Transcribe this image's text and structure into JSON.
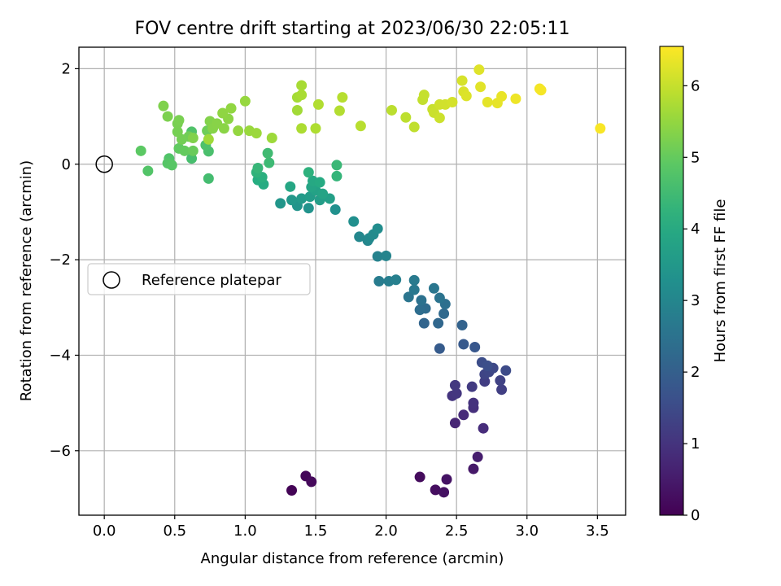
{
  "chart_data": {
    "type": "scatter",
    "title": "FOV centre drift starting at 2023/06/30 22:05:11",
    "xlabel": "Angular distance from reference (arcmin)",
    "ylabel": "Rotation from reference (arcmin)",
    "xlim": [
      -0.18,
      3.7
    ],
    "ylim": [
      -7.35,
      2.45
    ],
    "xticks": [
      0.0,
      0.5,
      1.0,
      1.5,
      2.0,
      2.5,
      3.0,
      3.5
    ],
    "xtick_labels": [
      "0.0",
      "0.5",
      "1.0",
      "1.5",
      "2.0",
      "2.5",
      "3.0",
      "3.5"
    ],
    "yticks": [
      -6,
      -4,
      -2,
      0,
      2
    ],
    "ytick_labels": [
      "−6",
      "−4",
      "−2",
      "0",
      "2"
    ],
    "grid": true,
    "colormap": "viridis",
    "colorbar": {
      "label": "Hours from first FF file",
      "range": [
        0,
        6.55
      ],
      "ticks": [
        0,
        1,
        2,
        3,
        4,
        5,
        6
      ],
      "tick_labels": [
        "0",
        "1",
        "2",
        "3",
        "4",
        "5",
        "6"
      ]
    },
    "legend": {
      "placement": "center-left",
      "entries": [
        {
          "label": "Reference platepar",
          "marker": "open-circle"
        }
      ]
    },
    "reference_point": {
      "x": 0.0,
      "y": 0.0
    },
    "series": [
      {
        "points": [
          {
            "x": 1.33,
            "y": -6.83,
            "c": 0.05
          },
          {
            "x": 1.43,
            "y": -6.53,
            "c": 0.1
          },
          {
            "x": 1.47,
            "y": -6.65,
            "c": 0.15
          },
          {
            "x": 2.24,
            "y": -6.55,
            "c": 0.2
          },
          {
            "x": 2.35,
            "y": -6.82,
            "c": 0.25
          },
          {
            "x": 2.41,
            "y": -6.87,
            "c": 0.3
          },
          {
            "x": 2.43,
            "y": -6.6,
            "c": 0.35
          },
          {
            "x": 2.62,
            "y": -6.38,
            "c": 0.45
          },
          {
            "x": 2.65,
            "y": -6.13,
            "c": 0.55
          },
          {
            "x": 2.49,
            "y": -5.42,
            "c": 0.7
          },
          {
            "x": 2.55,
            "y": -5.25,
            "c": 0.8
          },
          {
            "x": 2.69,
            "y": -5.53,
            "c": 0.85
          },
          {
            "x": 2.62,
            "y": -5.1,
            "c": 0.9
          },
          {
            "x": 2.62,
            "y": -5.0,
            "c": 0.95
          },
          {
            "x": 2.47,
            "y": -4.85,
            "c": 1.0
          },
          {
            "x": 2.5,
            "y": -4.8,
            "c": 1.05
          },
          {
            "x": 2.49,
            "y": -4.63,
            "c": 1.1
          },
          {
            "x": 2.61,
            "y": -4.66,
            "c": 1.15
          },
          {
            "x": 2.7,
            "y": -4.55,
            "c": 1.2
          },
          {
            "x": 2.82,
            "y": -4.72,
            "c": 1.25
          },
          {
            "x": 2.81,
            "y": -4.53,
            "c": 1.3
          },
          {
            "x": 2.7,
            "y": -4.4,
            "c": 1.35
          },
          {
            "x": 2.73,
            "y": -4.35,
            "c": 1.4
          },
          {
            "x": 2.76,
            "y": -4.27,
            "c": 1.45
          },
          {
            "x": 2.85,
            "y": -4.32,
            "c": 1.5
          },
          {
            "x": 2.68,
            "y": -4.15,
            "c": 1.55
          },
          {
            "x": 2.72,
            "y": -4.22,
            "c": 1.6
          },
          {
            "x": 2.63,
            "y": -3.83,
            "c": 1.8
          },
          {
            "x": 2.55,
            "y": -3.77,
            "c": 1.85
          },
          {
            "x": 2.38,
            "y": -3.86,
            "c": 1.9
          },
          {
            "x": 2.54,
            "y": -3.37,
            "c": 2.1
          },
          {
            "x": 2.27,
            "y": -3.33,
            "c": 2.15
          },
          {
            "x": 2.37,
            "y": -3.33,
            "c": 2.2
          },
          {
            "x": 2.41,
            "y": -3.13,
            "c": 2.25
          },
          {
            "x": 2.28,
            "y": -3.02,
            "c": 2.3
          },
          {
            "x": 2.24,
            "y": -3.05,
            "c": 2.35
          },
          {
            "x": 2.42,
            "y": -2.93,
            "c": 2.4
          },
          {
            "x": 2.25,
            "y": -2.85,
            "c": 2.45
          },
          {
            "x": 2.38,
            "y": -2.8,
            "c": 2.5
          },
          {
            "x": 2.16,
            "y": -2.78,
            "c": 2.55
          },
          {
            "x": 2.34,
            "y": -2.6,
            "c": 2.6
          },
          {
            "x": 2.2,
            "y": -2.63,
            "c": 2.65
          },
          {
            "x": 2.2,
            "y": -2.43,
            "c": 2.7
          },
          {
            "x": 1.95,
            "y": -2.45,
            "c": 2.75
          },
          {
            "x": 2.02,
            "y": -2.45,
            "c": 2.8
          },
          {
            "x": 2.07,
            "y": -2.42,
            "c": 2.85
          },
          {
            "x": 1.94,
            "y": -1.93,
            "c": 2.9
          },
          {
            "x": 2.0,
            "y": -1.92,
            "c": 2.95
          },
          {
            "x": 1.87,
            "y": -1.6,
            "c": 3.0
          },
          {
            "x": 1.81,
            "y": -1.52,
            "c": 3.05
          },
          {
            "x": 1.88,
            "y": -1.55,
            "c": 3.1
          },
          {
            "x": 1.91,
            "y": -1.47,
            "c": 3.15
          },
          {
            "x": 1.94,
            "y": -1.35,
            "c": 3.2
          },
          {
            "x": 1.77,
            "y": -1.2,
            "c": 3.25
          },
          {
            "x": 1.64,
            "y": -0.95,
            "c": 3.3
          },
          {
            "x": 1.45,
            "y": -0.92,
            "c": 3.35
          },
          {
            "x": 1.37,
            "y": -0.87,
            "c": 3.4
          },
          {
            "x": 1.25,
            "y": -0.82,
            "c": 3.45
          },
          {
            "x": 1.33,
            "y": -0.75,
            "c": 3.5
          },
          {
            "x": 1.4,
            "y": -0.72,
            "c": 3.55
          },
          {
            "x": 1.46,
            "y": -0.68,
            "c": 3.6
          },
          {
            "x": 1.53,
            "y": -0.75,
            "c": 3.65
          },
          {
            "x": 1.6,
            "y": -0.72,
            "c": 3.7
          },
          {
            "x": 1.5,
            "y": -0.55,
            "c": 3.75
          },
          {
            "x": 1.55,
            "y": -0.62,
            "c": 3.8
          },
          {
            "x": 1.47,
            "y": -0.48,
            "c": 3.85
          },
          {
            "x": 1.32,
            "y": -0.47,
            "c": 3.9
          },
          {
            "x": 1.48,
            "y": -0.35,
            "c": 3.95
          },
          {
            "x": 1.53,
            "y": -0.38,
            "c": 4.0
          },
          {
            "x": 1.13,
            "y": -0.42,
            "c": 4.05
          },
          {
            "x": 1.09,
            "y": -0.33,
            "c": 4.1
          },
          {
            "x": 1.12,
            "y": -0.27,
            "c": 4.15
          },
          {
            "x": 1.45,
            "y": -0.17,
            "c": 4.2
          },
          {
            "x": 1.08,
            "y": -0.17,
            "c": 4.25
          },
          {
            "x": 1.65,
            "y": -0.25,
            "c": 4.3
          },
          {
            "x": 1.09,
            "y": -0.08,
            "c": 4.35
          },
          {
            "x": 1.65,
            "y": -0.02,
            "c": 4.4
          },
          {
            "x": 1.17,
            "y": 0.03,
            "c": 4.45
          },
          {
            "x": 1.16,
            "y": 0.23,
            "c": 4.5
          },
          {
            "x": 0.74,
            "y": -0.3,
            "c": 4.55
          },
          {
            "x": 0.62,
            "y": 0.12,
            "c": 4.6
          },
          {
            "x": 0.74,
            "y": 0.27,
            "c": 4.65
          },
          {
            "x": 0.72,
            "y": 0.4,
            "c": 4.7
          },
          {
            "x": 0.62,
            "y": 0.68,
            "c": 4.72
          },
          {
            "x": 0.46,
            "y": 0.12,
            "c": 4.75
          },
          {
            "x": 0.31,
            "y": -0.14,
            "c": 4.78
          },
          {
            "x": 0.45,
            "y": 0.02,
            "c": 4.82
          },
          {
            "x": 0.48,
            "y": -0.02,
            "c": 4.85
          },
          {
            "x": 0.26,
            "y": 0.28,
            "c": 4.9
          },
          {
            "x": 0.53,
            "y": 0.33,
            "c": 4.95
          },
          {
            "x": 0.57,
            "y": 0.28,
            "c": 5.0
          },
          {
            "x": 0.63,
            "y": 0.28,
            "c": 5.05
          },
          {
            "x": 0.73,
            "y": 0.7,
            "c": 5.1
          },
          {
            "x": 0.6,
            "y": 0.58,
            "c": 5.12
          },
          {
            "x": 0.55,
            "y": 0.52,
            "c": 5.15
          },
          {
            "x": 0.52,
            "y": 0.68,
            "c": 5.18
          },
          {
            "x": 0.52,
            "y": 0.85,
            "c": 5.2
          },
          {
            "x": 0.53,
            "y": 0.92,
            "c": 5.22
          },
          {
            "x": 0.45,
            "y": 1.0,
            "c": 5.25
          },
          {
            "x": 0.42,
            "y": 1.22,
            "c": 5.28
          },
          {
            "x": 0.63,
            "y": 0.55,
            "c": 5.3
          },
          {
            "x": 0.75,
            "y": 0.9,
            "c": 5.32
          },
          {
            "x": 0.77,
            "y": 0.75,
            "c": 5.35
          },
          {
            "x": 0.8,
            "y": 0.85,
            "c": 5.37
          },
          {
            "x": 0.85,
            "y": 0.75,
            "c": 5.4
          },
          {
            "x": 0.88,
            "y": 0.95,
            "c": 5.42
          },
          {
            "x": 0.84,
            "y": 1.07,
            "c": 5.45
          },
          {
            "x": 0.9,
            "y": 1.17,
            "c": 5.47
          },
          {
            "x": 0.95,
            "y": 0.7,
            "c": 5.5
          },
          {
            "x": 1.0,
            "y": 1.32,
            "c": 5.52
          },
          {
            "x": 1.03,
            "y": 0.7,
            "c": 5.55
          },
          {
            "x": 1.08,
            "y": 0.65,
            "c": 5.57
          },
          {
            "x": 1.19,
            "y": 0.55,
            "c": 5.6
          },
          {
            "x": 0.74,
            "y": 0.52,
            "c": 5.62
          },
          {
            "x": 1.37,
            "y": 1.13,
            "c": 5.65
          },
          {
            "x": 1.37,
            "y": 1.4,
            "c": 5.67
          },
          {
            "x": 1.4,
            "y": 1.65,
            "c": 5.7
          },
          {
            "x": 1.4,
            "y": 1.45,
            "c": 5.72
          },
          {
            "x": 1.4,
            "y": 0.75,
            "c": 5.75
          },
          {
            "x": 1.5,
            "y": 0.75,
            "c": 5.77
          },
          {
            "x": 1.52,
            "y": 1.25,
            "c": 5.8
          },
          {
            "x": 1.67,
            "y": 1.12,
            "c": 5.82
          },
          {
            "x": 1.69,
            "y": 1.4,
            "c": 5.85
          },
          {
            "x": 1.82,
            "y": 0.8,
            "c": 5.87
          },
          {
            "x": 2.04,
            "y": 1.13,
            "c": 5.9
          },
          {
            "x": 2.14,
            "y": 0.98,
            "c": 5.92
          },
          {
            "x": 2.2,
            "y": 0.78,
            "c": 5.95
          },
          {
            "x": 2.26,
            "y": 1.35,
            "c": 5.97
          },
          {
            "x": 2.27,
            "y": 1.45,
            "c": 6.0
          },
          {
            "x": 2.33,
            "y": 1.15,
            "c": 6.02
          },
          {
            "x": 2.34,
            "y": 1.08,
            "c": 6.05
          },
          {
            "x": 2.38,
            "y": 0.97,
            "c": 6.07
          },
          {
            "x": 2.38,
            "y": 1.25,
            "c": 6.1
          },
          {
            "x": 2.42,
            "y": 1.25,
            "c": 6.12
          },
          {
            "x": 2.47,
            "y": 1.3,
            "c": 6.15
          },
          {
            "x": 2.54,
            "y": 1.75,
            "c": 6.17
          },
          {
            "x": 2.55,
            "y": 1.52,
            "c": 6.2
          },
          {
            "x": 2.57,
            "y": 1.43,
            "c": 6.22
          },
          {
            "x": 2.66,
            "y": 1.98,
            "c": 6.25
          },
          {
            "x": 2.67,
            "y": 1.62,
            "c": 6.27
          },
          {
            "x": 2.72,
            "y": 1.3,
            "c": 6.3
          },
          {
            "x": 2.79,
            "y": 1.28,
            "c": 6.32
          },
          {
            "x": 2.82,
            "y": 1.42,
            "c": 6.35
          },
          {
            "x": 2.92,
            "y": 1.37,
            "c": 6.4
          },
          {
            "x": 3.09,
            "y": 1.58,
            "c": 6.45
          },
          {
            "x": 3.1,
            "y": 1.55,
            "c": 6.47
          },
          {
            "x": 3.52,
            "y": 0.75,
            "c": 6.5
          }
        ]
      }
    ]
  }
}
